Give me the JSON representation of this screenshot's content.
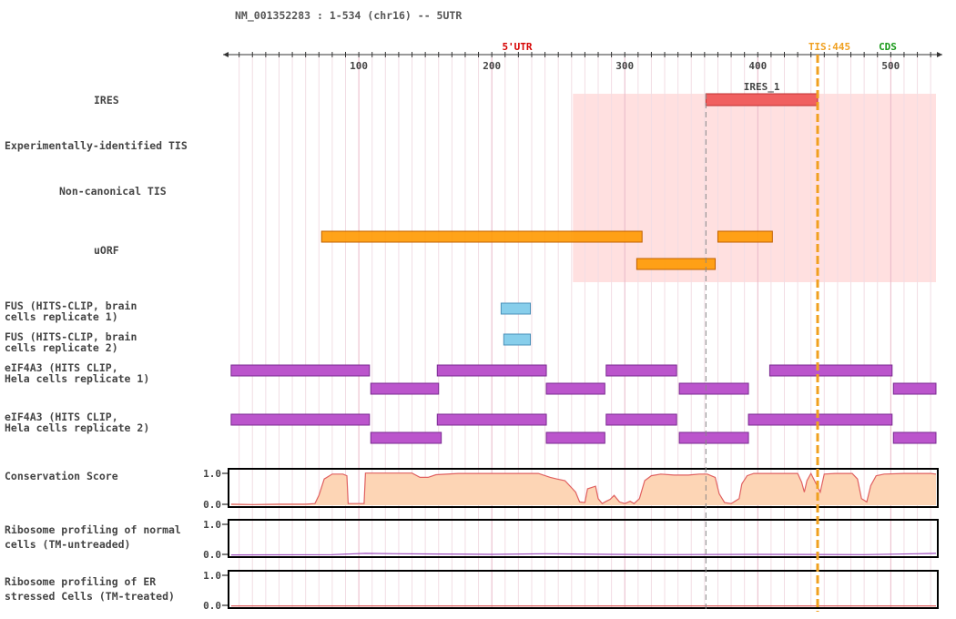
{
  "header": {
    "title": "NM_001352283 : 1-534 (chr16) -- 5UTR"
  },
  "axis": {
    "min": 1,
    "max": 534,
    "ticks": [
      "100",
      "200",
      "300",
      "400",
      "500"
    ],
    "tick_values": [
      100,
      200,
      300,
      400,
      500
    ]
  },
  "markers": {
    "utr_label": "5'UTR",
    "utr_color": "#d60000",
    "tis_label": "TIS:445",
    "tis_position": 445,
    "tis_color": "#f0a020",
    "cds_label": "CDS",
    "cds_color": "#1a9a1a",
    "ires_guide_position": 361
  },
  "tracks": {
    "ires": {
      "label": "IRES",
      "region_start": 261,
      "region_end": 534,
      "features": [
        {
          "name": "IRES_1",
          "start": 361,
          "end": 445,
          "color": "#f06060"
        }
      ]
    },
    "exp_tis": {
      "label": "Experimentally-identified TIS"
    },
    "noncanonical_tis": {
      "label": "Non-canonical TIS"
    },
    "uorf": {
      "label": "uORF",
      "color": "#ff9900",
      "features": [
        {
          "start": 72,
          "end": 313,
          "row": 0
        },
        {
          "start": 370,
          "end": 411,
          "row": 0
        },
        {
          "start": 309,
          "end": 368,
          "row": 1
        }
      ]
    },
    "fus1": {
      "label": "FUS (HITS-CLIP, brain\ncells replicate 1)",
      "color": "#87ceeb",
      "features": [
        {
          "start": 207,
          "end": 229
        }
      ]
    },
    "fus2": {
      "label": "FUS (HITS-CLIP, brain\ncells replicate 2)",
      "color": "#87ceeb",
      "features": [
        {
          "start": 209,
          "end": 229
        }
      ]
    },
    "eif1": {
      "label": "eIF4A3 (HITS CLIP,\nHela cells replicate 1)",
      "color": "#bb55cc",
      "features": [
        {
          "start": 4,
          "end": 108,
          "row": 0
        },
        {
          "start": 159,
          "end": 241,
          "row": 0
        },
        {
          "start": 286,
          "end": 339,
          "row": 0
        },
        {
          "start": 409,
          "end": 501,
          "row": 0
        },
        {
          "start": 109,
          "end": 160,
          "row": 1
        },
        {
          "start": 241,
          "end": 285,
          "row": 1
        },
        {
          "start": 341,
          "end": 393,
          "row": 1
        },
        {
          "start": 502,
          "end": 534,
          "row": 1
        }
      ]
    },
    "eif2": {
      "label": "eIF4A3 (HITS CLIP,\nHela cells replicate 2)",
      "color": "#bb55cc",
      "features": [
        {
          "start": 4,
          "end": 108,
          "row": 0
        },
        {
          "start": 159,
          "end": 241,
          "row": 0
        },
        {
          "start": 286,
          "end": 339,
          "row": 0
        },
        {
          "start": 393,
          "end": 501,
          "row": 0
        },
        {
          "start": 109,
          "end": 162,
          "row": 1
        },
        {
          "start": 241,
          "end": 285,
          "row": 1
        },
        {
          "start": 341,
          "end": 393,
          "row": 1
        },
        {
          "start": 502,
          "end": 534,
          "row": 1
        }
      ]
    },
    "conservation": {
      "label": "Conservation Score",
      "ymax": "1.0",
      "ymin": "0.0",
      "fill": "#fdd5b5",
      "stroke": "#e06060",
      "points": [
        [
          4,
          0.03
        ],
        [
          20,
          0.02
        ],
        [
          40,
          0.03
        ],
        [
          60,
          0.03
        ],
        [
          67,
          0.05
        ],
        [
          70,
          0.3
        ],
        [
          74,
          0.8
        ],
        [
          80,
          0.95
        ],
        [
          88,
          0.95
        ],
        [
          91,
          0.9
        ],
        [
          92,
          0.05
        ],
        [
          104,
          0.05
        ],
        [
          105,
          0.98
        ],
        [
          140,
          0.98
        ],
        [
          146,
          0.85
        ],
        [
          152,
          0.85
        ],
        [
          158,
          0.93
        ],
        [
          175,
          0.97
        ],
        [
          200,
          0.97
        ],
        [
          235,
          0.97
        ],
        [
          244,
          0.85
        ],
        [
          249,
          0.8
        ],
        [
          255,
          0.75
        ],
        [
          263,
          0.4
        ],
        [
          266,
          0.1
        ],
        [
          270,
          0.08
        ],
        [
          272,
          0.5
        ],
        [
          278,
          0.58
        ],
        [
          280,
          0.2
        ],
        [
          283,
          0.05
        ],
        [
          286,
          0.12
        ],
        [
          289,
          0.18
        ],
        [
          292,
          0.3
        ],
        [
          296,
          0.1
        ],
        [
          300,
          0.05
        ],
        [
          304,
          0.12
        ],
        [
          307,
          0.05
        ],
        [
          311,
          0.2
        ],
        [
          315,
          0.75
        ],
        [
          320,
          0.9
        ],
        [
          327,
          0.95
        ],
        [
          337,
          0.92
        ],
        [
          348,
          0.92
        ],
        [
          356,
          0.95
        ],
        [
          362,
          0.95
        ],
        [
          368,
          0.85
        ],
        [
          371,
          0.35
        ],
        [
          375,
          0.08
        ],
        [
          380,
          0.05
        ],
        [
          386,
          0.2
        ],
        [
          388,
          0.65
        ],
        [
          392,
          0.9
        ],
        [
          397,
          0.97
        ],
        [
          430,
          0.97
        ],
        [
          433,
          0.7
        ],
        [
          435,
          0.4
        ],
        [
          437,
          0.75
        ],
        [
          440,
          0.97
        ],
        [
          447,
          0.4
        ],
        [
          450,
          0.95
        ],
        [
          458,
          0.97
        ],
        [
          471,
          0.97
        ],
        [
          475,
          0.8
        ],
        [
          478,
          0.2
        ],
        [
          482,
          0.1
        ],
        [
          485,
          0.6
        ],
        [
          489,
          0.9
        ],
        [
          495,
          0.95
        ],
        [
          510,
          0.97
        ],
        [
          530,
          0.97
        ],
        [
          534,
          0.95
        ]
      ]
    },
    "ribo_normal": {
      "label": "Ribosome profiling of normal\ncells (TM-untreaded)",
      "ymax": "1.0",
      "ymin": "0.0",
      "stroke": "#a050c0",
      "points": [
        [
          4,
          0.01
        ],
        [
          80,
          0.02
        ],
        [
          105,
          0.06
        ],
        [
          130,
          0.05
        ],
        [
          160,
          0.04
        ],
        [
          200,
          0.03
        ],
        [
          240,
          0.05
        ],
        [
          290,
          0.03
        ],
        [
          330,
          0.02
        ],
        [
          400,
          0.03
        ],
        [
          480,
          0.02
        ],
        [
          520,
          0.05
        ],
        [
          534,
          0.06
        ]
      ]
    },
    "ribo_er": {
      "label": "Ribosome profiling of ER\nstressed Cells (TM-treated)",
      "ymax": "1.0",
      "ymin": "0.0",
      "stroke": "#e06060",
      "points": [
        [
          4,
          0.01
        ],
        [
          534,
          0.01
        ]
      ]
    }
  }
}
